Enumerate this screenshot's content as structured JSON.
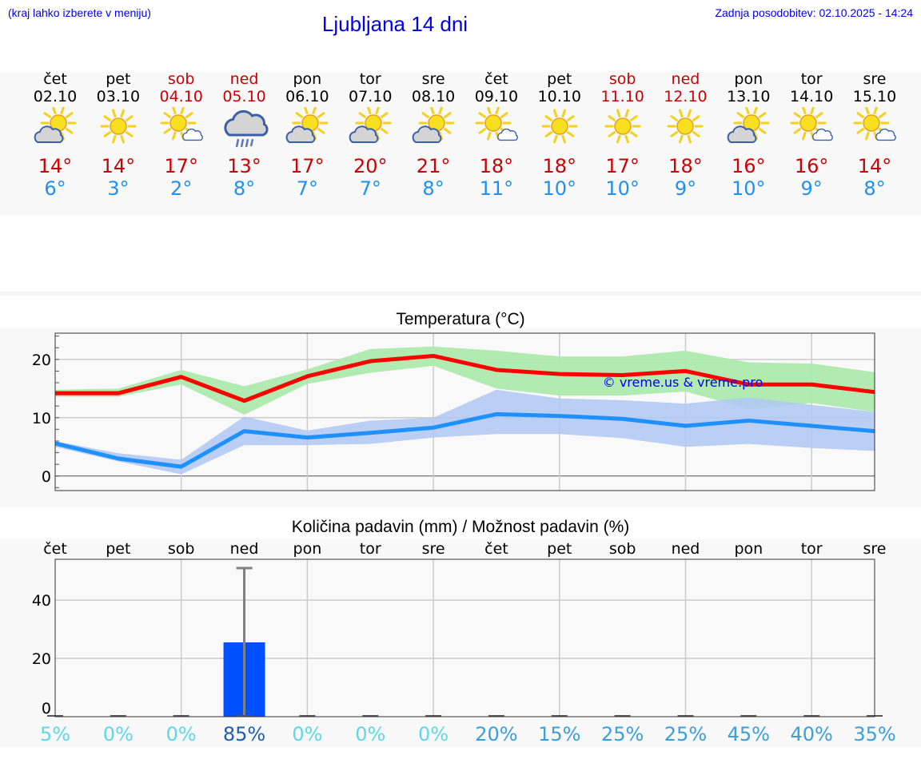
{
  "header": {
    "hint": "(kraj lahko izberete v meniju)",
    "title": "Ljubljana 14 dni",
    "updated": "Zadnja posodobitev: 02.10.2025 - 14:24"
  },
  "colors": {
    "weekday": "#000000",
    "weekend": "#cc0000",
    "tmax": "#cc0000",
    "tmin": "#2090f0",
    "max_line": "#ff0000",
    "max_band": "#aeeaae",
    "min_line": "#1e90ff",
    "min_band": "#b0c8f2",
    "bar": "#0050ff",
    "link": "#0000ee"
  },
  "days": [
    {
      "name": "čet",
      "date": "02.10",
      "weekend": false,
      "icon": "partly-cloudy-icon",
      "max": "14°",
      "min": "6°"
    },
    {
      "name": "pet",
      "date": "03.10",
      "weekend": false,
      "icon": "sun-icon",
      "max": "14°",
      "min": "3°"
    },
    {
      "name": "sob",
      "date": "04.10",
      "weekend": true,
      "icon": "sun-small-cloud-icon",
      "max": "17°",
      "min": "2°"
    },
    {
      "name": "ned",
      "date": "05.10",
      "weekend": true,
      "icon": "rain-cloud-icon",
      "max": "13°",
      "min": "8°"
    },
    {
      "name": "pon",
      "date": "06.10",
      "weekend": false,
      "icon": "partly-cloudy-icon",
      "max": "17°",
      "min": "7°"
    },
    {
      "name": "tor",
      "date": "07.10",
      "weekend": false,
      "icon": "partly-cloudy-icon",
      "max": "20°",
      "min": "7°"
    },
    {
      "name": "sre",
      "date": "08.10",
      "weekend": false,
      "icon": "partly-cloudy-icon",
      "max": "21°",
      "min": "8°"
    },
    {
      "name": "čet",
      "date": "09.10",
      "weekend": false,
      "icon": "sun-small-cloud-icon",
      "max": "18°",
      "min": "11°"
    },
    {
      "name": "pet",
      "date": "10.10",
      "weekend": false,
      "icon": "sun-icon",
      "max": "18°",
      "min": "10°"
    },
    {
      "name": "sob",
      "date": "11.10",
      "weekend": true,
      "icon": "sun-icon",
      "max": "17°",
      "min": "10°"
    },
    {
      "name": "ned",
      "date": "12.10",
      "weekend": true,
      "icon": "sun-icon",
      "max": "18°",
      "min": "9°"
    },
    {
      "name": "pon",
      "date": "13.10",
      "weekend": false,
      "icon": "partly-cloudy-icon",
      "max": "16°",
      "min": "10°"
    },
    {
      "name": "tor",
      "date": "14.10",
      "weekend": false,
      "icon": "sun-small-cloud-icon",
      "max": "16°",
      "min": "9°"
    },
    {
      "name": "sre",
      "date": "15.10",
      "weekend": false,
      "icon": "sun-small-cloud-icon",
      "max": "14°",
      "min": "8°"
    }
  ],
  "chart_data": [
    {
      "type": "line",
      "title": "Temperatura (°C)",
      "ylim": [
        -2.5,
        24.5
      ],
      "yticks": [
        0,
        10,
        20
      ],
      "grid": true,
      "watermark": "© vreme.us & vreme.pro",
      "series": [
        {
          "values": [
            14.2,
            14.2,
            17.0,
            12.9,
            17.1,
            19.7,
            20.6,
            18.2,
            17.5,
            17.3,
            18.0,
            15.7,
            15.7,
            14.4
          ],
          "band_upper": [
            14.8,
            15.0,
            18.2,
            15.4,
            18.3,
            21.8,
            22.2,
            21.5,
            20.5,
            20.5,
            21.5,
            19.5,
            19.3,
            17.8
          ],
          "band_lower": [
            13.6,
            13.6,
            15.7,
            10.5,
            15.8,
            17.7,
            18.9,
            15.0,
            13.8,
            13.8,
            14.5,
            11.5,
            12.5,
            11.0
          ]
        },
        {
          "values": [
            5.6,
            3.0,
            1.6,
            7.7,
            6.6,
            7.4,
            8.3,
            10.6,
            10.3,
            9.8,
            8.6,
            9.5,
            8.6,
            7.7
          ],
          "band_upper": [
            6.0,
            3.9,
            2.8,
            10.2,
            7.8,
            9.5,
            10.0,
            14.8,
            13.3,
            13.0,
            12.4,
            13.5,
            12.2,
            11.0
          ],
          "band_lower": [
            5.0,
            2.5,
            0.3,
            5.3,
            5.3,
            5.5,
            6.6,
            7.2,
            7.2,
            6.5,
            5.0,
            5.5,
            4.8,
            4.3
          ]
        }
      ]
    },
    {
      "type": "bar",
      "title": "Količina padavin (mm) / Možnost padavin (%)",
      "ylim": [
        0,
        54
      ],
      "yticks": [
        0,
        20,
        40
      ],
      "grid": true,
      "categories": [
        "čet",
        "pet",
        "sob",
        "ned",
        "pon",
        "tor",
        "sre",
        "čet",
        "pet",
        "sob",
        "ned",
        "pon",
        "tor",
        "sre"
      ],
      "values": [
        0,
        0,
        0,
        25.5,
        0,
        0,
        0,
        0,
        0,
        0,
        0,
        0,
        0,
        0
      ],
      "error_upper": [
        0,
        0,
        0,
        51,
        0,
        0,
        0,
        0,
        0,
        0,
        0,
        0,
        0,
        0
      ],
      "probability": [
        "5%",
        "0%",
        "0%",
        "85%",
        "0%",
        "0%",
        "0%",
        "20%",
        "15%",
        "25%",
        "25%",
        "45%",
        "40%",
        "35%"
      ],
      "probability_colors": [
        "#5cd8e8",
        "#5cd8e8",
        "#5cd8e8",
        "#1a5fb4",
        "#5cd8e8",
        "#5cd8e8",
        "#5cd8e8",
        "#3a9ee0",
        "#3a9ee0",
        "#3a9ee0",
        "#3a9ee0",
        "#3a9ee0",
        "#3a9ee0",
        "#3a9ee0"
      ]
    }
  ]
}
